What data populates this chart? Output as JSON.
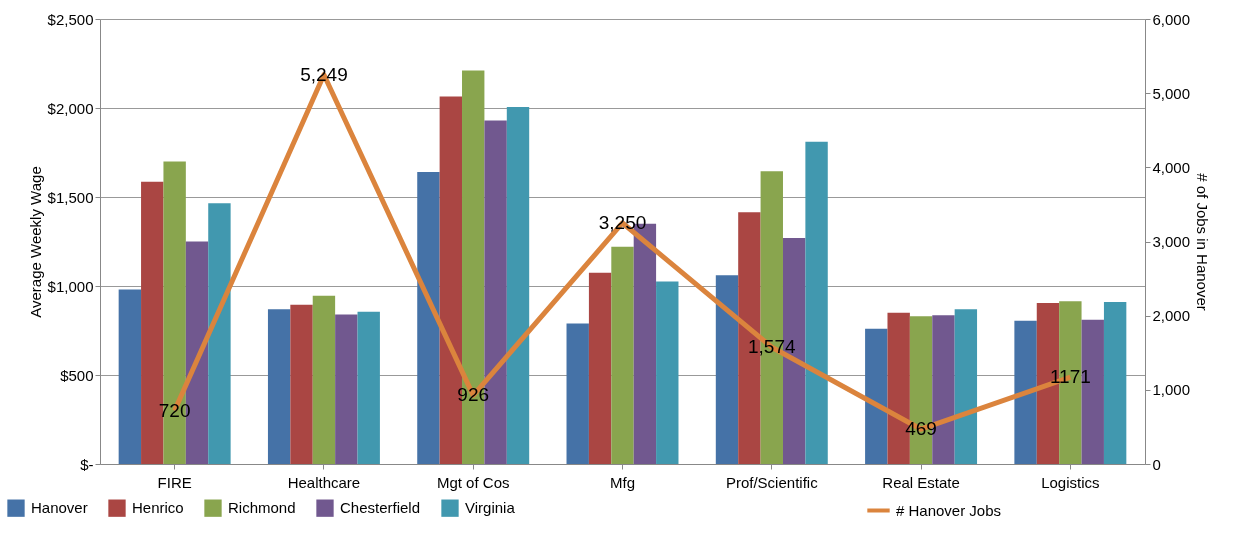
{
  "chart_data": {
    "type": "bar",
    "categories": [
      "FIRE",
      "Healthcare",
      "Mgt of Cos",
      "Mfg",
      "Prof/Scientific",
      "Real Estate",
      "Logistics"
    ],
    "ylabel": "Average Weekly Wage",
    "y2label": "# of Jobs in Hanover",
    "ylim": [
      0,
      2500
    ],
    "yticks": [
      {
        "value": 0,
        "label": "$-"
      },
      {
        "value": 500,
        "label": "$500"
      },
      {
        "value": 1000,
        "label": "$1,000"
      },
      {
        "value": 1500,
        "label": "$1,500"
      },
      {
        "value": 2000,
        "label": "$2,000"
      },
      {
        "value": 2500,
        "label": "$2,500"
      }
    ],
    "y2lim": [
      0,
      6000
    ],
    "y2ticks": [
      0,
      {
        "value": 1000,
        "label": "1,000"
      },
      {
        "value": 2000,
        "label": "2,000"
      },
      {
        "value": 3000,
        "label": "3,000"
      },
      {
        "value": 4000,
        "label": "4,000"
      },
      {
        "value": 5000,
        "label": "5,000"
      },
      {
        "value": 6000,
        "label": "6,000"
      }
    ],
    "grid": "y",
    "legend": "bottom",
    "series": [
      {
        "name": "Hanover",
        "color": "#4572a7",
        "values": [
          980,
          870,
          1640,
          790,
          1060,
          760,
          805
        ]
      },
      {
        "name": "Henrico",
        "color": "#aa4643",
        "values": [
          1585,
          895,
          2065,
          1075,
          1415,
          850,
          905
        ]
      },
      {
        "name": "Richmond",
        "color": "#89a54e",
        "values": [
          1700,
          945,
          2210,
          1220,
          1645,
          830,
          915
        ]
      },
      {
        "name": "Chesterfield",
        "color": "#71588f",
        "values": [
          1250,
          840,
          1930,
          1350,
          1270,
          835,
          810
        ]
      },
      {
        "name": "Virginia",
        "color": "#4198af",
        "values": [
          1465,
          855,
          2005,
          1025,
          1810,
          870,
          910
        ]
      },
      {
        "name": "# Hanover Jobs",
        "color": "#db843d",
        "type": "line",
        "axis": "y2",
        "values": [
          720,
          5249,
          926,
          3250,
          1574,
          469,
          1171
        ],
        "value_labels": [
          "720",
          "5,249",
          "926",
          "3,250",
          "1,574",
          "469",
          "1171"
        ]
      }
    ]
  }
}
